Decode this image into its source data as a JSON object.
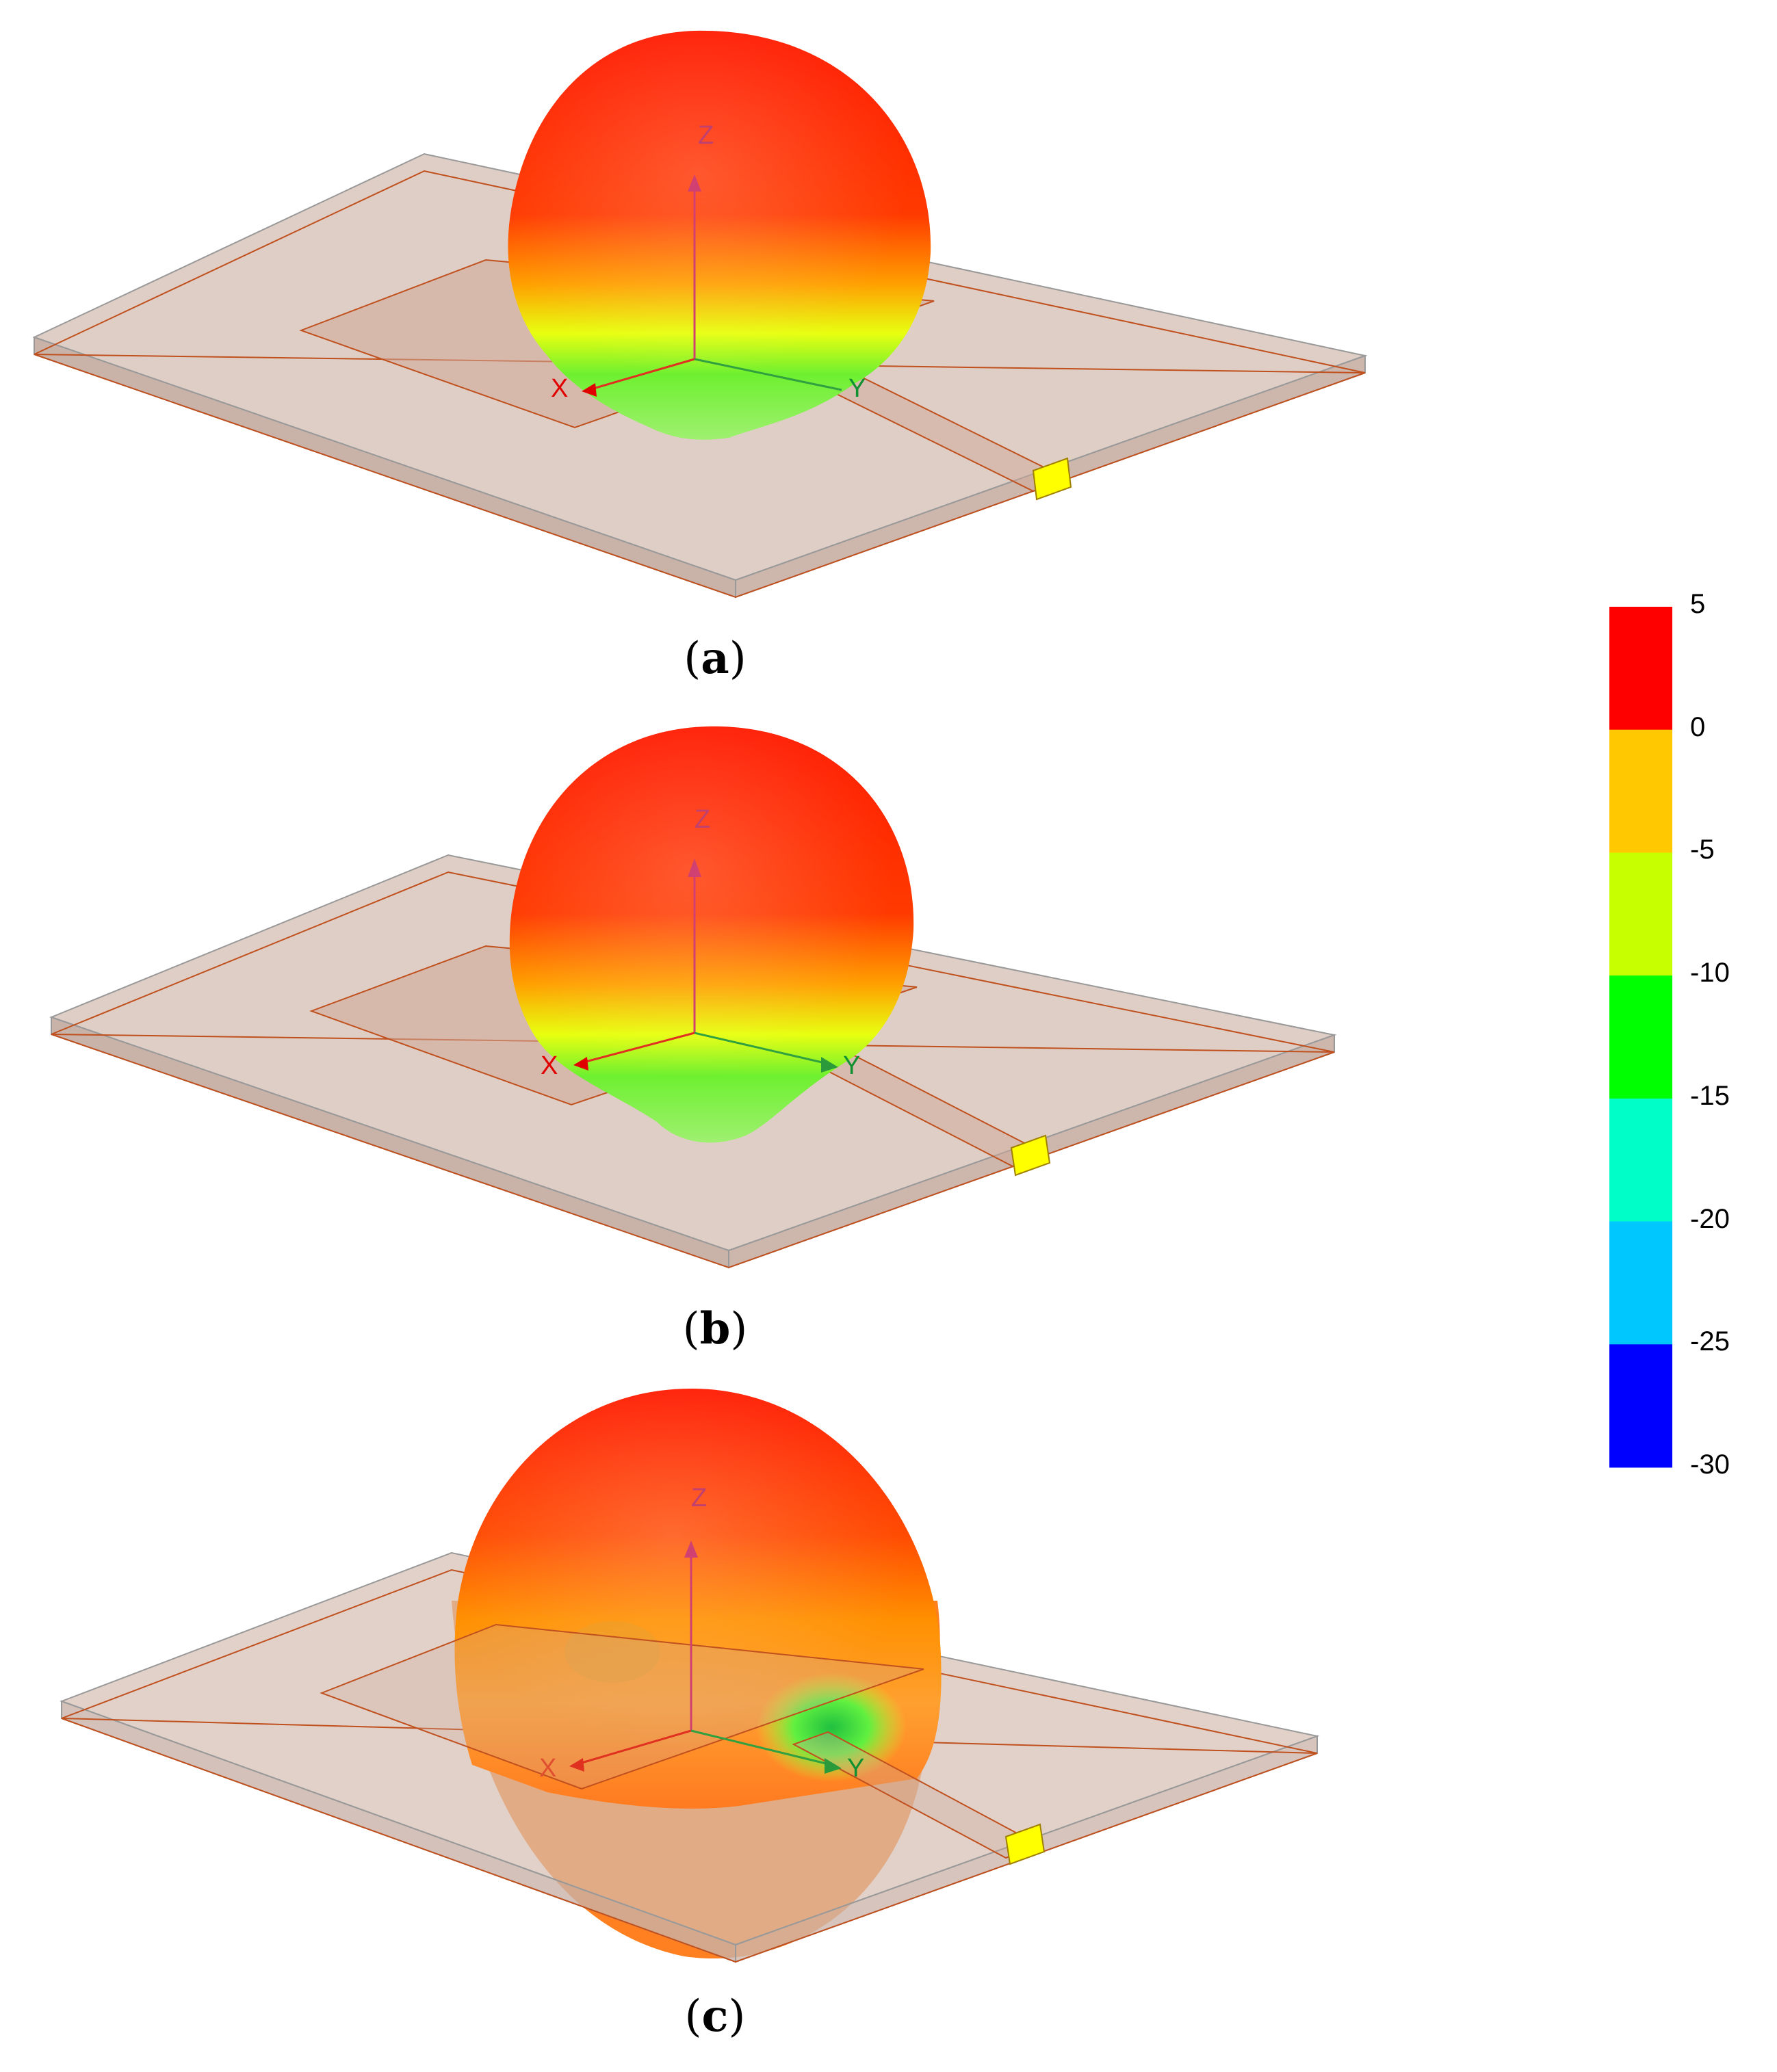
{
  "panels": [
    {
      "id": "a",
      "caption_letter": "a",
      "axis_labels": {
        "x": "X",
        "y": "Y",
        "z": "Z"
      }
    },
    {
      "id": "b",
      "caption_letter": "b",
      "axis_labels": {
        "x": "X",
        "y": "Y",
        "z": "Z"
      }
    },
    {
      "id": "c",
      "caption_letter": "c",
      "axis_labels": {
        "x": "X",
        "y": "Y",
        "z": "Z"
      }
    }
  ],
  "colorbar": {
    "ticks": [
      "5",
      "0",
      "-5",
      "-10",
      "-15",
      "-20",
      "-25",
      "-30"
    ],
    "band_colors": [
      "#ff0000",
      "#ffc800",
      "#c8ff00",
      "#00ff00",
      "#00ffc8",
      "#00c8ff",
      "#0000ff"
    ]
  },
  "colors": {
    "substrate_top": "#d9c0b4",
    "substrate_edge": "#c8c8c8",
    "copper_line": "#c0501e",
    "port": "#ffff00"
  }
}
